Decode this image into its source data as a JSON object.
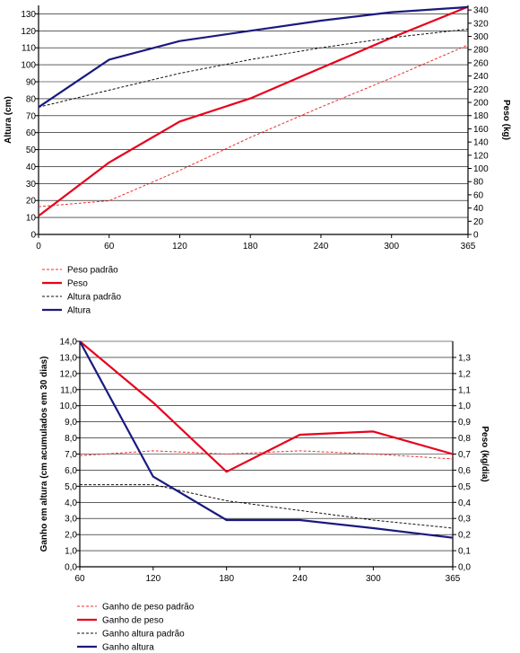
{
  "chart_data": [
    {
      "type": "line",
      "x": [
        0,
        60,
        120,
        180,
        240,
        300,
        365
      ],
      "xlim": [
        0,
        365
      ],
      "y_left": {
        "label": "Altura (cm)",
        "ylim": [
          0,
          135
        ],
        "ticks": [
          0,
          10,
          20,
          30,
          40,
          50,
          60,
          70,
          80,
          90,
          100,
          110,
          120,
          130
        ]
      },
      "y_right": {
        "label": "Peso (kg)",
        "ylim": [
          0,
          347
        ],
        "ticks": [
          0,
          20,
          40,
          60,
          80,
          100,
          120,
          140,
          160,
          180,
          200,
          220,
          240,
          260,
          280,
          300,
          320,
          340
        ]
      },
      "x_ticks": [
        "0",
        "60",
        "120",
        "180",
        "240",
        "300",
        "365"
      ],
      "grid": true,
      "legend_position": "bottom-left",
      "series": [
        {
          "name": "Peso padrão",
          "axis": "right",
          "style": "dashed",
          "color": "#e8322d",
          "values": [
            42,
            51,
            97,
            147,
            193,
            237,
            287
          ]
        },
        {
          "name": "Peso",
          "axis": "right",
          "style": "solid",
          "color": "#e8001c",
          "values": [
            28,
            109,
            171,
            206,
            252,
            298,
            345
          ]
        },
        {
          "name": "Altura padrão",
          "axis": "left",
          "style": "dashed",
          "color": "#111111",
          "values": [
            75,
            85,
            95,
            103,
            110,
            116,
            121
          ]
        },
        {
          "name": "Altura",
          "axis": "left",
          "style": "solid",
          "color": "#1a1a80",
          "values": [
            75,
            103,
            114,
            120,
            126,
            131,
            134
          ]
        }
      ]
    },
    {
      "type": "line",
      "x": [
        60,
        120,
        180,
        240,
        300,
        365
      ],
      "xlim": [
        60,
        365
      ],
      "y_left": {
        "label": "Ganho em altura (cm acumulados em 30 dias)",
        "ylim": [
          0,
          14
        ],
        "ticks": [
          "0,0",
          "1,0",
          "2,0",
          "3,0",
          "4,0",
          "5,0",
          "6,0",
          "7,0",
          "8,0",
          "9,0",
          "10,0",
          "11,0",
          "12,0",
          "13,0",
          "14,0"
        ]
      },
      "y_right": {
        "label": "Peso (kg/dia)",
        "ylim": [
          0,
          1.4
        ],
        "ticks": [
          "0,0",
          "0,1",
          "0,2",
          "0,3",
          "0,4",
          "0,5",
          "0,6",
          "0,7",
          "0,8",
          "0,9",
          "1,0",
          "1,1",
          "1,2",
          "1,3"
        ]
      },
      "x_ticks": [
        "60",
        "120",
        "180",
        "240",
        "300",
        "365"
      ],
      "grid": true,
      "legend_position": "bottom-left",
      "series": [
        {
          "name": "Ganho de peso padrão",
          "axis": "right",
          "style": "dashed",
          "color": "#e8322d",
          "values": [
            0.69,
            0.72,
            0.7,
            0.72,
            0.7,
            0.67
          ]
        },
        {
          "name": "Ganho de peso",
          "axis": "right",
          "style": "solid",
          "color": "#e8001c",
          "values": [
            1.4,
            1.02,
            0.59,
            0.82,
            0.84,
            0.7
          ]
        },
        {
          "name": "Ganho altura padrão",
          "axis": "left",
          "style": "dashed",
          "color": "#111111",
          "values": [
            5.1,
            5.1,
            4.1,
            3.5,
            2.9,
            2.4
          ]
        },
        {
          "name": "Ganho altura",
          "axis": "left",
          "style": "solid",
          "color": "#1a1a80",
          "values": [
            14.0,
            5.6,
            2.9,
            2.9,
            2.4,
            1.8
          ]
        }
      ]
    }
  ]
}
